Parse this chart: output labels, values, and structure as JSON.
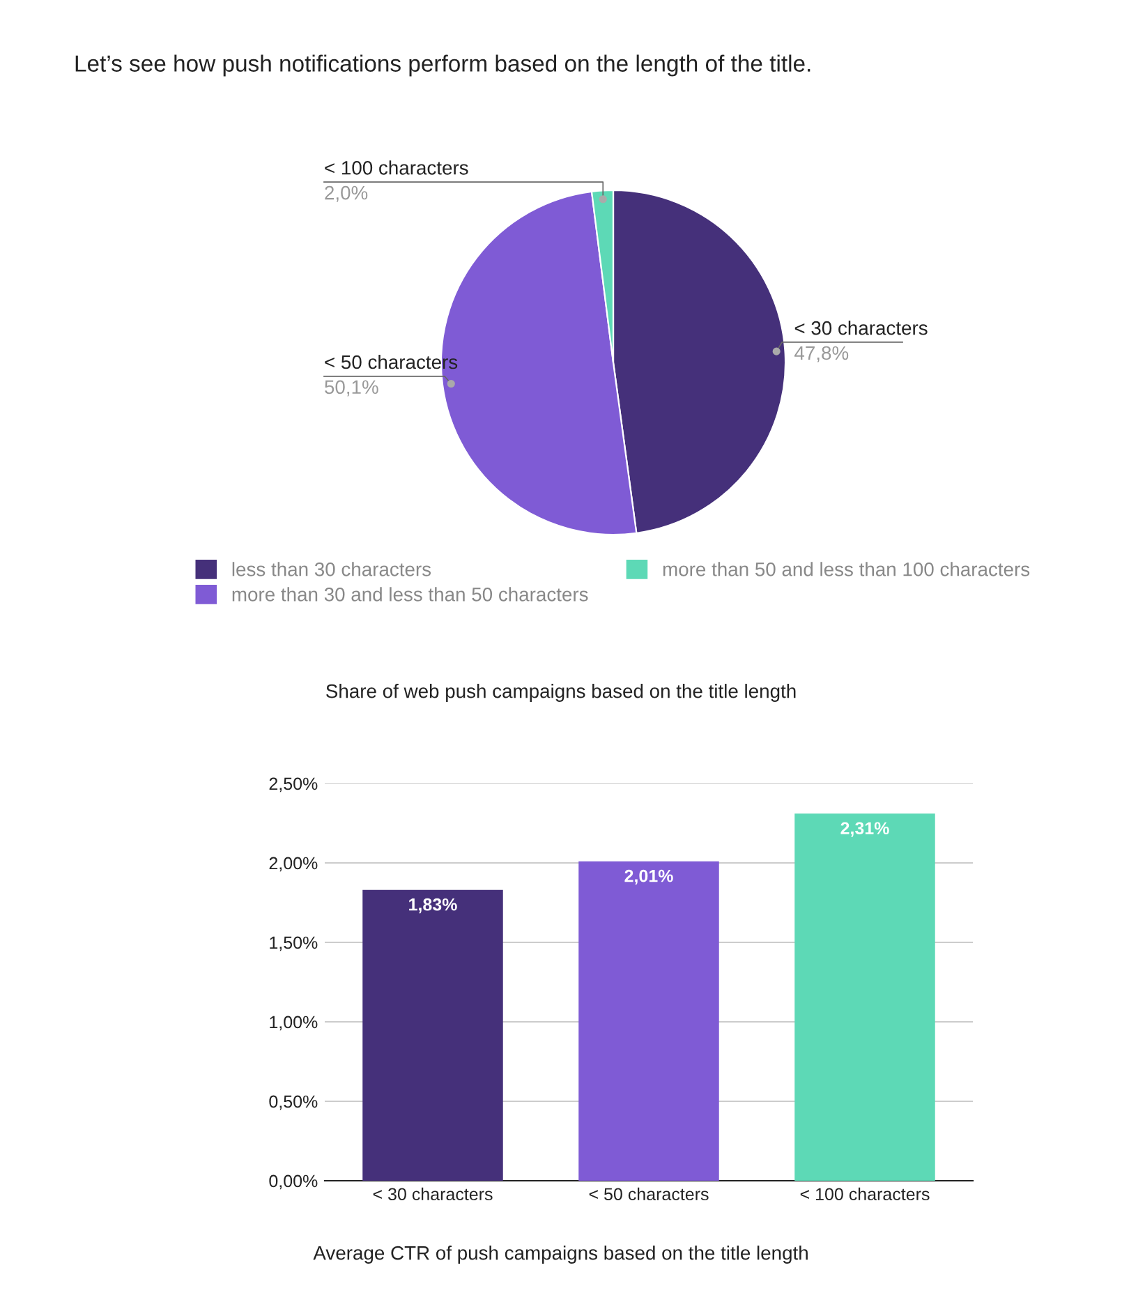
{
  "chart_data": [
    {
      "type": "pie",
      "title": "Share of web push campaigns based on the title length",
      "annotations": [
        "Let’s see how push notifications perform based on the length of the title."
      ],
      "categories": [
        "less than 30 characters",
        "more than 30 and less than 50 characters",
        "more than 50 and less than 100 characters"
      ],
      "values": [
        47.8,
        50.1,
        2.0
      ],
      "colors": [
        "#45307a",
        "#7f5bd5",
        "#5dd9b6"
      ],
      "value_labels": [
        "< 30 characters\n47,8%",
        "< 50 characters\n50,1%",
        "< 100 characters\n2,0%"
      ],
      "legend": "bottom"
    },
    {
      "type": "bar",
      "title": "Average CTR of push campaigns based on the title length",
      "categories": [
        "< 30 characters",
        "< 50 characters",
        "< 100 characters"
      ],
      "values": [
        1.83,
        2.01,
        2.31
      ],
      "colors": [
        "#45307a",
        "#7f5bd5",
        "#5dd9b6"
      ],
      "value_labels": [
        "1,83%",
        "2,01%",
        "2,31%"
      ],
      "ylim": [
        0,
        2.5
      ],
      "yticks": [
        {
          "value": 0,
          "label": "0,00%"
        },
        {
          "value": 0.5,
          "label": "0,50%"
        },
        {
          "value": 1.0,
          "label": "1,00%"
        },
        {
          "value": 1.5,
          "label": "1,50%"
        },
        {
          "value": 2.0,
          "label": "2,00%"
        },
        {
          "value": 2.5,
          "label": "2,50%"
        }
      ],
      "grid": "y"
    }
  ]
}
